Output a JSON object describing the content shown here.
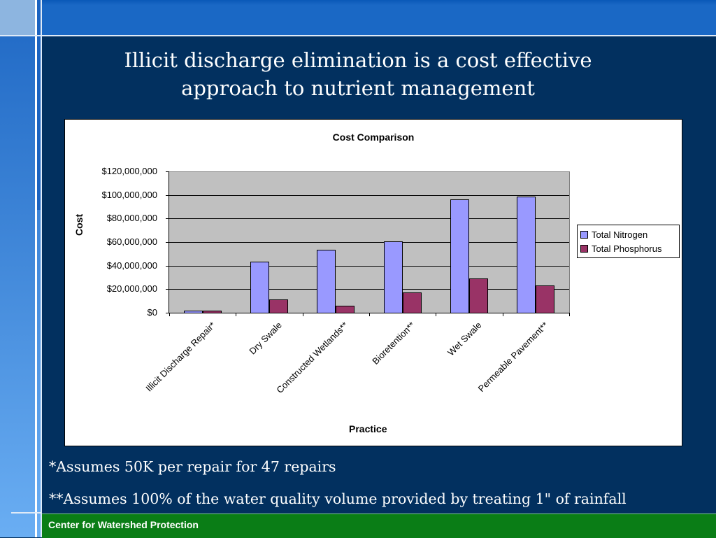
{
  "slide": {
    "title_line1": "Illicit discharge elimination is a cost effective",
    "title_line2": "approach to nutrient management",
    "notes": [
      "*Assumes 50K per repair for 47 repairs",
      "**Assumes 100% of the water quality volume provided by treating 1\" of rainfall"
    ],
    "footer": "Center for Watershed Protection",
    "colors": {
      "background": "#02305f",
      "top_band": "#1a68c5",
      "footer": "#0a7d16",
      "nitrogen": "#9999ff",
      "phosphorus": "#993366",
      "plot_bg": "#c0c0c0"
    }
  },
  "chart_data": {
    "type": "bar",
    "title": "Cost Comparison",
    "xlabel": "Practice",
    "ylabel": "Cost",
    "ylim": [
      0,
      120000000
    ],
    "yticks": [
      "$0",
      "$20,000,000",
      "$40,000,000",
      "$60,000,000",
      "$80,000,000",
      "$100,000,000",
      "$120,000,000"
    ],
    "grid": true,
    "legend_position": "right",
    "categories": [
      "Illicit Discharge Repair*",
      "Dry Swale",
      "Constructed Wetlands**",
      "Bioretention**",
      "Wet Swale",
      "Permeable Pavement**"
    ],
    "series": [
      {
        "name": "Total Nitrogen",
        "values": [
          2350000,
          44000000,
          54000000,
          61000000,
          97000000,
          99000000
        ]
      },
      {
        "name": "Total Phosphorus",
        "values": [
          2350000,
          12000000,
          6500000,
          18000000,
          29500000,
          24000000
        ]
      }
    ]
  }
}
